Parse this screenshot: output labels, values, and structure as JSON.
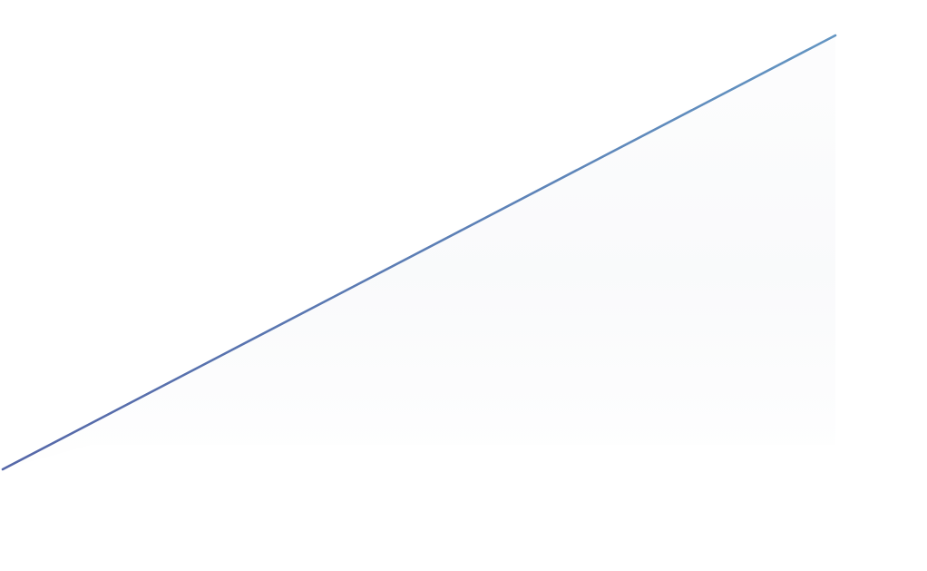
{
  "graphic": {
    "kind": "diagonal-line-with-shaded-area",
    "line_color_start": "#5567A8",
    "line_color_end": "#6395C2",
    "fill_color": "#EEF0F4",
    "background": "#ffffff"
  }
}
